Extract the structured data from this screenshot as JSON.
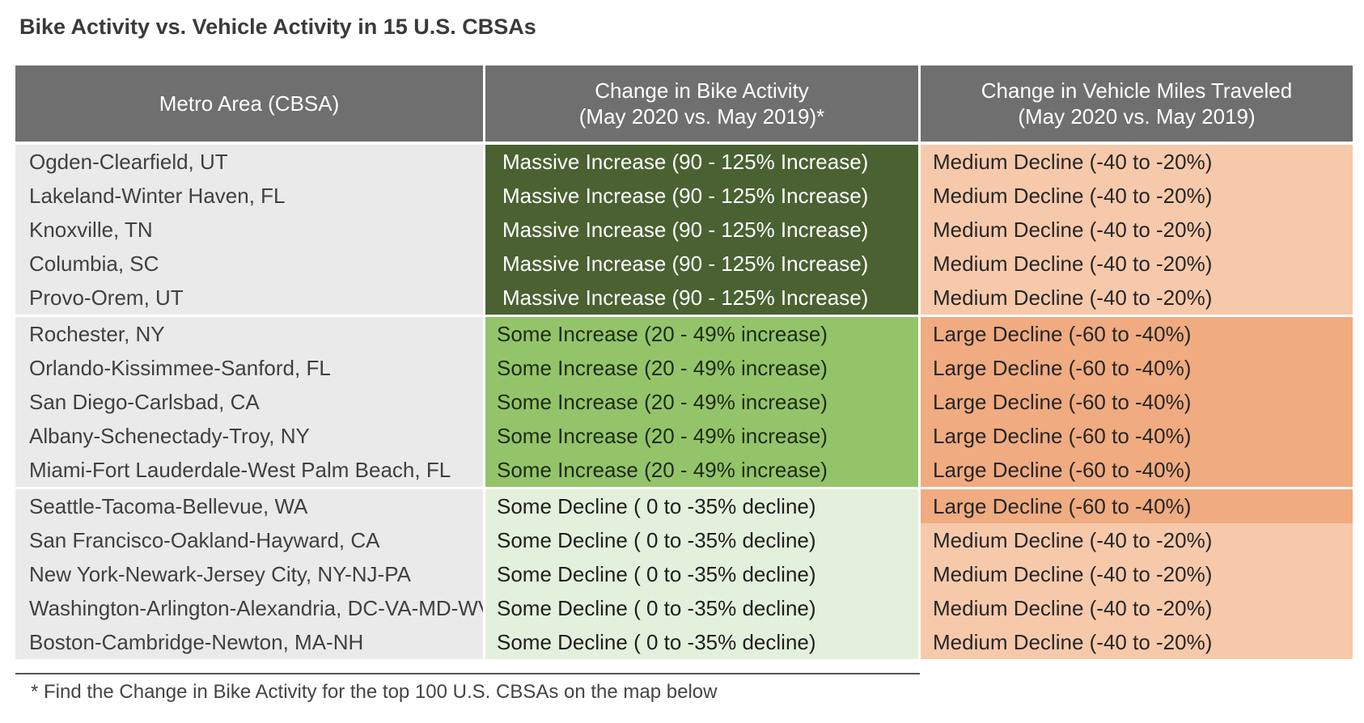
{
  "title": "Bike Activity vs. Vehicle Activity in 15 U.S. CBSAs",
  "table": {
    "headers": {
      "metro": "Metro Area (CBSA)",
      "bike_line1": "Change in Bike Activity",
      "bike_line2": "(May 2020 vs. May 2019)*",
      "vehicle_line1": "Change in Vehicle Miles Traveled",
      "vehicle_line2": "(May 2020 vs. May 2019)"
    },
    "groups": [
      {
        "rows": [
          {
            "metro": "Ogden-Clearfield, UT",
            "bike": "Massive Increase (90 - 125% Increase)",
            "vehicle": "Medium Decline (-40 to -20%)"
          },
          {
            "metro": "Lakeland-Winter Haven, FL",
            "bike": "Massive Increase (90 - 125% Increase)",
            "vehicle": "Medium Decline (-40 to -20%)"
          },
          {
            "metro": "Knoxville, TN",
            "bike": "Massive Increase (90 - 125% Increase)",
            "vehicle": "Medium Decline (-40 to -20%)"
          },
          {
            "metro": "Columbia, SC",
            "bike": "Massive Increase (90 - 125% Increase)",
            "vehicle": "Medium Decline (-40 to -20%)"
          },
          {
            "metro": "Provo-Orem, UT",
            "bike": "Massive Increase (90 - 125% Increase)",
            "vehicle": "Medium Decline (-40 to -20%)"
          }
        ]
      },
      {
        "rows": [
          {
            "metro": "Rochester, NY",
            "bike": "Some Increase (20 - 49% increase)",
            "vehicle": "Large Decline (-60 to -40%)"
          },
          {
            "metro": "Orlando-Kissimmee-Sanford, FL",
            "bike": "Some Increase (20 - 49% increase)",
            "vehicle": "Large Decline (-60 to -40%)"
          },
          {
            "metro": "San Diego-Carlsbad, CA",
            "bike": "Some Increase (20 - 49% increase)",
            "vehicle": "Large Decline (-60 to -40%)"
          },
          {
            "metro": "Albany-Schenectady-Troy, NY",
            "bike": "Some Increase (20 - 49% increase)",
            "vehicle": "Large Decline (-60 to -40%)"
          },
          {
            "metro": "Miami-Fort Lauderdale-West Palm Beach, FL",
            "bike": "Some Increase (20 - 49% increase)",
            "vehicle": "Large Decline (-60 to -40%)"
          }
        ]
      },
      {
        "rows": [
          {
            "metro": "Seattle-Tacoma-Bellevue, WA",
            "bike": "Some Decline ( 0 to -35% decline)",
            "vehicle": "Large Decline (-60 to -40%)"
          },
          {
            "metro": "San Francisco-Oakland-Hayward, CA",
            "bike": "Some Decline ( 0 to -35% decline)",
            "vehicle": "Medium Decline (-40 to -20%)"
          },
          {
            "metro": "New York-Newark-Jersey City, NY-NJ-PA",
            "bike": "Some Decline ( 0 to -35% decline)",
            "vehicle": "Medium Decline (-40 to -20%)"
          },
          {
            "metro": "Washington-Arlington-Alexandria, DC-VA-MD-WV",
            "bike": "Some Decline ( 0 to -35% decline)",
            "vehicle": "Medium Decline (-40 to -20%)"
          },
          {
            "metro": "Boston-Cambridge-Newton, MA-NH",
            "bike": "Some Decline ( 0 to -35% decline)",
            "vehicle": "Medium Decline (-40 to -20%)"
          }
        ]
      }
    ]
  },
  "footnote": "* Find the Change in Bike Activity for the top 100 U.S. CBSAs on the map below",
  "colors": {
    "header_bg": "#6f6f6f",
    "metro_bg": "#eaeaea",
    "massive_increase": "#4a6132",
    "some_increase": "#94c46a",
    "some_decline": "#e3f0dc",
    "medium_decline": "#f7c9ab",
    "large_decline": "#f0ab80"
  }
}
